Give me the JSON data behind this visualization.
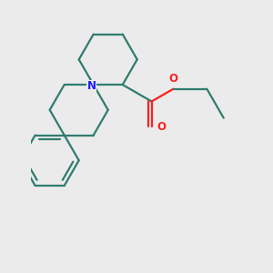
{
  "background_color": "#ebebeb",
  "bond_color": "#2e7d6e",
  "N_color": "#1a1aff",
  "O_color": "#ff2020",
  "bond_width": 1.6,
  "figsize": [
    3.0,
    3.0
  ],
  "dpi": 100,
  "xlim": [
    -1.8,
    4.5
  ],
  "ylim": [
    -5.5,
    2.5
  ]
}
